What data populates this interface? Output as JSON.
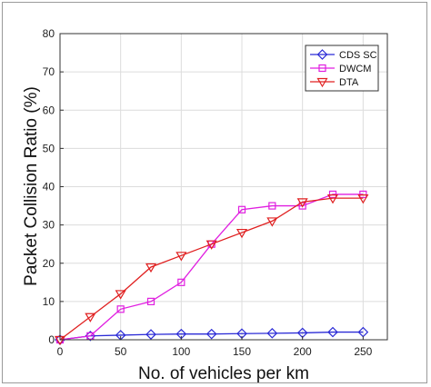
{
  "chart_data": {
    "type": "line",
    "title": "",
    "xlabel": "No. of vehicles per km",
    "ylabel": "Packet Collision Ratio (%)",
    "xlim": [
      0,
      270
    ],
    "ylim": [
      0,
      80
    ],
    "xticks": [
      0,
      50,
      100,
      150,
      200,
      250
    ],
    "yticks": [
      0,
      10,
      20,
      30,
      40,
      50,
      60,
      70,
      80
    ],
    "grid": true,
    "legend_position": "top-right",
    "x": [
      0,
      25,
      50,
      75,
      100,
      125,
      150,
      175,
      200,
      225,
      250
    ],
    "series": [
      {
        "name": "CDS SC",
        "color": "#2b2bd6",
        "marker": "diamond",
        "values": [
          0,
          1,
          1.2,
          1.4,
          1.5,
          1.5,
          1.6,
          1.7,
          1.8,
          2,
          2
        ]
      },
      {
        "name": "DWCM",
        "color": "#e01ee0",
        "marker": "square",
        "values": [
          0,
          1,
          8,
          10,
          15,
          25,
          34,
          35,
          35,
          38,
          38
        ]
      },
      {
        "name": "DTA",
        "color": "#e02020",
        "marker": "triangle-down",
        "values": [
          0,
          6,
          12,
          19,
          22,
          25,
          28,
          31,
          36,
          37,
          37
        ]
      }
    ]
  }
}
